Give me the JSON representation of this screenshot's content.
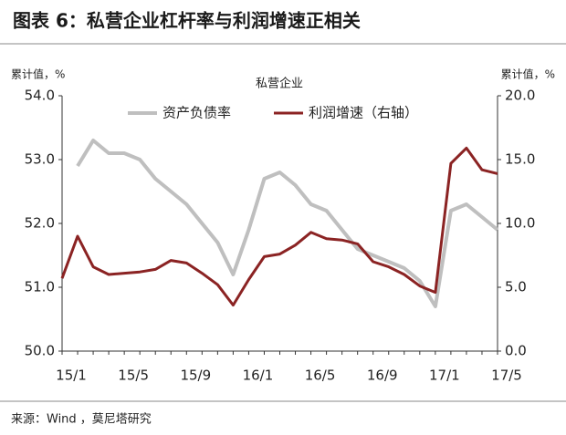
{
  "chart_data": {
    "type": "line",
    "header": "图表 6：私营企业杠杆率与利润增速正相关",
    "title": "私营企业",
    "ylabel": "累计值，%",
    "y2label": "累计值，%",
    "source": "来源：Wind ，莫尼塔研究",
    "categories": [
      "15/1",
      null,
      null,
      null,
      "15/5",
      null,
      null,
      null,
      "15/9",
      null,
      null,
      null,
      "16/1",
      null,
      null,
      null,
      "16/5",
      null,
      null,
      null,
      "16/9",
      null,
      null,
      null,
      "17/1",
      null,
      null,
      null,
      "17/5"
    ],
    "series": [
      {
        "name": "资产负债率",
        "color": "#bfbfbf",
        "axis": "y",
        "values": [
          null,
          52.9,
          53.3,
          53.1,
          53.1,
          53.0,
          52.7,
          52.5,
          52.3,
          52.0,
          51.7,
          51.2,
          51.9,
          52.7,
          52.8,
          52.6,
          52.3,
          52.2,
          51.9,
          51.6,
          51.5,
          51.4,
          51.3,
          51.1,
          50.7,
          52.2,
          52.3,
          52.1,
          51.9
        ]
      },
      {
        "name": "利润增速（右轴）",
        "color": "#8b2323",
        "axis": "y2",
        "values": [
          5.7,
          9.0,
          6.6,
          6.0,
          6.1,
          6.2,
          6.4,
          7.1,
          6.9,
          6.1,
          5.2,
          3.6,
          5.6,
          7.4,
          7.6,
          8.3,
          9.3,
          8.8,
          8.7,
          8.4,
          7.0,
          6.6,
          6.0,
          5.1,
          4.6,
          14.7,
          15.9,
          14.2,
          13.9
        ]
      }
    ],
    "ylim": [
      50,
      54
    ],
    "yticks": [
      {
        "value": 50,
        "label": "50.0"
      },
      {
        "value": 51,
        "label": "51.0"
      },
      {
        "value": 52,
        "label": "52.0"
      },
      {
        "value": 53,
        "label": "53.0"
      },
      {
        "value": 54,
        "label": "54.0"
      }
    ],
    "y2lim": [
      0,
      20
    ],
    "y2ticks": [
      {
        "value": 0,
        "label": "0.0"
      },
      {
        "value": 5,
        "label": "5.0"
      },
      {
        "value": 10,
        "label": "10.0"
      },
      {
        "value": 15,
        "label": "15.0"
      },
      {
        "value": 20,
        "label": "20.0"
      }
    ],
    "legend": "top"
  }
}
